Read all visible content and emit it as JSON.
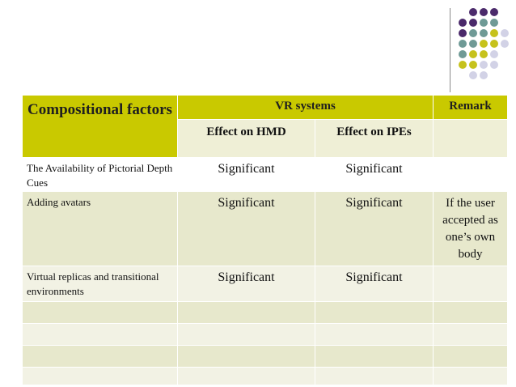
{
  "decor": {
    "dot_colors": {
      "purple": "#4b2a6b",
      "teal": "#6f9a96",
      "olive": "#c6c21c",
      "lavender": "#d2d2e6"
    },
    "grid": [
      [
        "",
        "purple",
        "purple",
        "purple",
        ""
      ],
      [
        "purple",
        "purple",
        "teal",
        "teal",
        ""
      ],
      [
        "purple",
        "teal",
        "teal",
        "olive",
        "lavender"
      ],
      [
        "teal",
        "teal",
        "olive",
        "olive",
        "lavender"
      ],
      [
        "teal",
        "olive",
        "olive",
        "lavender",
        ""
      ],
      [
        "olive",
        "olive",
        "lavender",
        "lavender",
        ""
      ],
      [
        "",
        "lavender",
        "lavender",
        "",
        ""
      ]
    ]
  },
  "table": {
    "header": {
      "compositional_factors": "Compositional factors",
      "vr_systems": "VR systems",
      "remark": "Remark",
      "effect_hmd": "Effect on HMD",
      "effect_ipes": "Effect on IPEs"
    },
    "rows": [
      {
        "factor": "The Availability of Pictorial Depth Cues",
        "hmd": "Significant",
        "ipes": "Significant",
        "remark": ""
      },
      {
        "factor": "Adding avatars",
        "hmd": "Significant",
        "ipes": "Significant",
        "remark": "If the user accepted as one’s own body"
      },
      {
        "factor": "Virtual replicas and transitional environments",
        "hmd": "Significant",
        "ipes": "Significant",
        "remark": ""
      },
      {
        "factor": "",
        "hmd": "",
        "ipes": "",
        "remark": ""
      },
      {
        "factor": "",
        "hmd": "",
        "ipes": "",
        "remark": ""
      },
      {
        "factor": "",
        "hmd": "",
        "ipes": "",
        "remark": ""
      },
      {
        "factor": "",
        "hmd": "",
        "ipes": "",
        "remark": ""
      }
    ]
  }
}
